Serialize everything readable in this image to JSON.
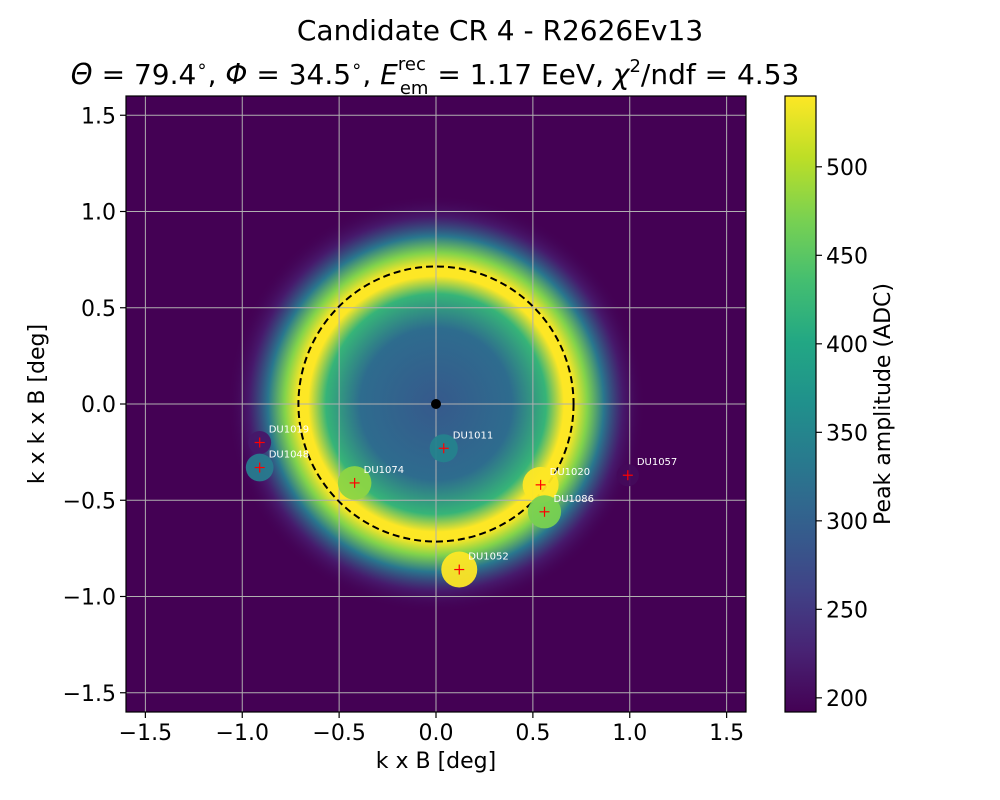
{
  "chart_data": {
    "type": "heatmap",
    "title": "Candidate CR 4 - R2626Ev13",
    "subtitle": {
      "theta_label": "Θ",
      "theta_value": "79.4",
      "phi_label": "Φ",
      "phi_value": "34.5",
      "energy_label": "E",
      "energy_sup": "rec",
      "energy_sub": "em",
      "energy_value": "1.17 EeV",
      "chi_label": "χ",
      "chi_sup": "2",
      "chi_ndf": "/ndf",
      "chi_value": "4.53"
    },
    "xlabel": "k x B [deg]",
    "ylabel": "k x k x B [deg]",
    "xlim": [
      -1.6,
      1.6
    ],
    "ylim": [
      -1.6,
      1.6
    ],
    "x_ticks": [
      -1.5,
      -1.0,
      -0.5,
      0.0,
      0.5,
      1.0,
      1.5
    ],
    "y_ticks": [
      -1.5,
      -1.0,
      -0.5,
      0.0,
      0.5,
      1.0,
      1.5
    ],
    "x_tick_labels": [
      "−1.5",
      "−1.0",
      "−0.5",
      "0.0",
      "0.5",
      "1.0",
      "1.5"
    ],
    "y_tick_labels": [
      "−1.5",
      "−1.0",
      "−0.5",
      "0.0",
      "0.5",
      "1.0",
      "1.5"
    ],
    "grid": true,
    "colorbar": {
      "label": "Peak amplitude (ADC)",
      "min": 192,
      "max": 540,
      "ticks": [
        200,
        250,
        300,
        350,
        400,
        450,
        500
      ],
      "tick_labels": [
        "200",
        "250",
        "300",
        "350",
        "400",
        "450",
        "500"
      ],
      "colormap": "viridis"
    },
    "model": {
      "center": [
        0.0,
        0.0
      ],
      "ring_radius": 0.71,
      "peak_value": 540,
      "center_value": 290,
      "background_value": 192,
      "center_marker_color": "#000000",
      "ring_line_style": "dashed",
      "ring_line_color": "#000000"
    },
    "antennas": [
      {
        "name": "DU1019",
        "x": -0.91,
        "y": -0.2,
        "value": 215
      },
      {
        "name": "DU1048",
        "x": -0.91,
        "y": -0.33,
        "value": 335
      },
      {
        "name": "DU1074",
        "x": -0.42,
        "y": -0.41,
        "value": 480
      },
      {
        "name": "DU1011",
        "x": 0.04,
        "y": -0.23,
        "value": 345
      },
      {
        "name": "DU1020",
        "x": 0.54,
        "y": -0.42,
        "value": 540
      },
      {
        "name": "DU1086",
        "x": 0.56,
        "y": -0.56,
        "value": 470
      },
      {
        "name": "DU1052",
        "x": 0.12,
        "y": -0.86,
        "value": 540
      },
      {
        "name": "DU1057",
        "x": 0.99,
        "y": -0.37,
        "value": 200
      }
    ],
    "antenna_marker_color": "#ff0000",
    "antenna_label_color": "#ffffff"
  }
}
